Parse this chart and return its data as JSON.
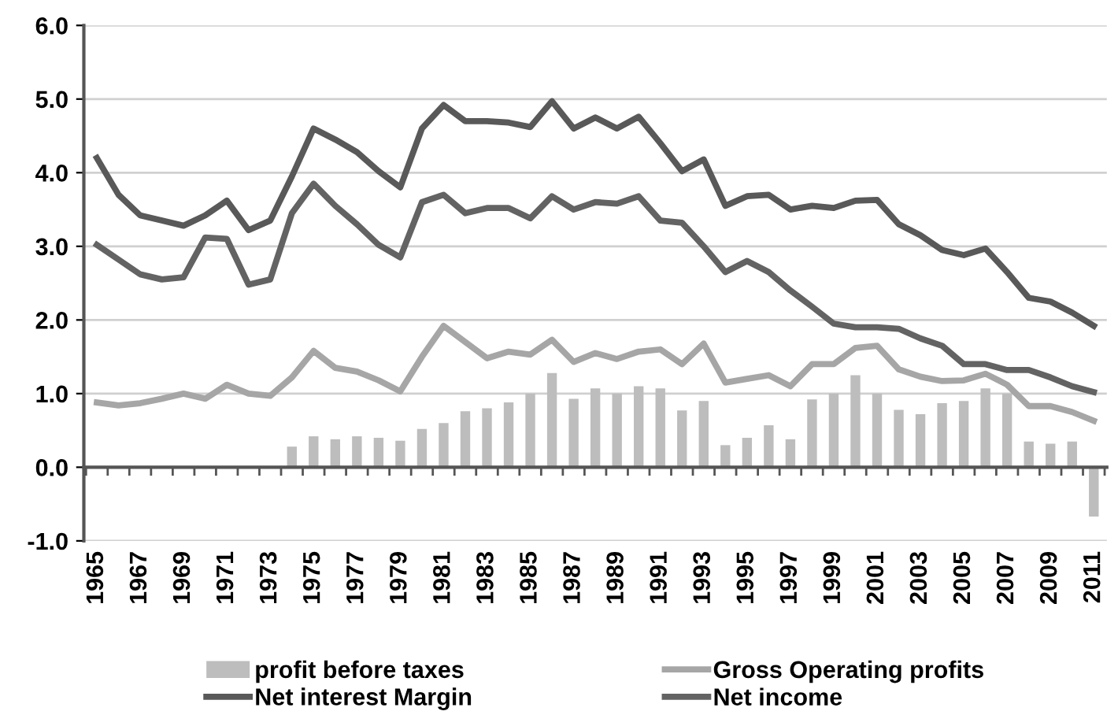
{
  "chart_data": {
    "type": "line",
    "categories": [
      "1965",
      null,
      "1967",
      null,
      "1969",
      null,
      "1971",
      null,
      "1973",
      null,
      "1975",
      null,
      "1977",
      null,
      "1979",
      null,
      "1981",
      null,
      "1983",
      null,
      "1985",
      null,
      "1987",
      null,
      "1989",
      null,
      "1991",
      null,
      "1993",
      null,
      "1995",
      null,
      "1997",
      null,
      "1999",
      null,
      "2001",
      null,
      "2003",
      null,
      "2005",
      null,
      "2007",
      null,
      "2009",
      null,
      "2011"
    ],
    "series": [
      {
        "name": "profit before taxes",
        "type": "bar",
        "color": "#bdbdbd",
        "values": [
          null,
          null,
          null,
          null,
          null,
          null,
          null,
          null,
          null,
          0.28,
          0.42,
          0.38,
          0.42,
          0.4,
          0.36,
          0.52,
          0.6,
          0.76,
          0.8,
          0.88,
          1.0,
          1.28,
          0.93,
          1.07,
          1.0,
          1.1,
          1.07,
          0.77,
          0.9,
          0.3,
          0.4,
          0.57,
          0.38,
          0.92,
          1.0,
          1.25,
          1.0,
          0.78,
          0.72,
          0.87,
          0.9,
          1.07,
          1.0,
          0.35,
          0.32,
          0.35,
          -0.67
        ]
      },
      {
        "name": "Gross Operating profits",
        "color": "#a6a6a6",
        "values": [
          0.88,
          0.84,
          0.87,
          0.93,
          1.0,
          0.93,
          1.12,
          1.0,
          0.97,
          1.22,
          1.58,
          1.35,
          1.3,
          1.18,
          1.03,
          1.5,
          1.92,
          1.7,
          1.48,
          1.57,
          1.53,
          1.73,
          1.43,
          1.55,
          1.47,
          1.57,
          1.6,
          1.4,
          1.68,
          1.15,
          1.2,
          1.25,
          1.1,
          1.4,
          1.4,
          1.62,
          1.65,
          1.33,
          1.23,
          1.17,
          1.18,
          1.27,
          1.12,
          0.83,
          0.83,
          0.75,
          0.63
        ]
      },
      {
        "name": "Net interest Margin",
        "color": "#595959",
        "values": [
          4.2,
          3.7,
          3.42,
          3.35,
          3.28,
          3.42,
          3.62,
          3.22,
          3.35,
          3.95,
          4.6,
          4.45,
          4.28,
          4.02,
          3.8,
          4.6,
          4.92,
          4.7,
          4.7,
          4.68,
          4.62,
          4.97,
          4.6,
          4.75,
          4.6,
          4.76,
          4.4,
          4.02,
          4.18,
          3.55,
          3.68,
          3.7,
          3.5,
          3.55,
          3.52,
          3.62,
          3.63,
          3.3,
          3.15,
          2.95,
          2.88,
          2.97,
          2.65,
          2.3,
          2.25,
          2.1,
          1.92
        ]
      },
      {
        "name": "Net income",
        "color": "#636363",
        "values": [
          3.02,
          2.82,
          2.62,
          2.55,
          2.58,
          3.12,
          3.1,
          2.48,
          2.55,
          3.45,
          3.85,
          3.55,
          3.3,
          3.02,
          2.85,
          3.6,
          3.7,
          3.45,
          3.52,
          3.52,
          3.38,
          3.68,
          3.5,
          3.6,
          3.58,
          3.68,
          3.35,
          3.32,
          3.0,
          2.65,
          2.8,
          2.65,
          2.4,
          2.18,
          1.95,
          1.9,
          1.9,
          1.88,
          1.75,
          1.65,
          1.4,
          1.4,
          1.32,
          1.32,
          1.22,
          1.1,
          1.02
        ]
      }
    ],
    "ylim": [
      -1,
      6
    ],
    "yticks": [
      {
        "value": -1,
        "label": "-1.0"
      },
      {
        "value": 0,
        "label": "0.0"
      },
      {
        "value": 1,
        "label": "1.0"
      },
      {
        "value": 2,
        "label": "2.0"
      },
      {
        "value": 3,
        "label": "3.0"
      },
      {
        "value": 4,
        "label": "4.0"
      },
      {
        "value": 5,
        "label": "5.0"
      },
      {
        "value": 6,
        "label": "6.0"
      }
    ],
    "grid": "y",
    "legend": "bottom"
  }
}
